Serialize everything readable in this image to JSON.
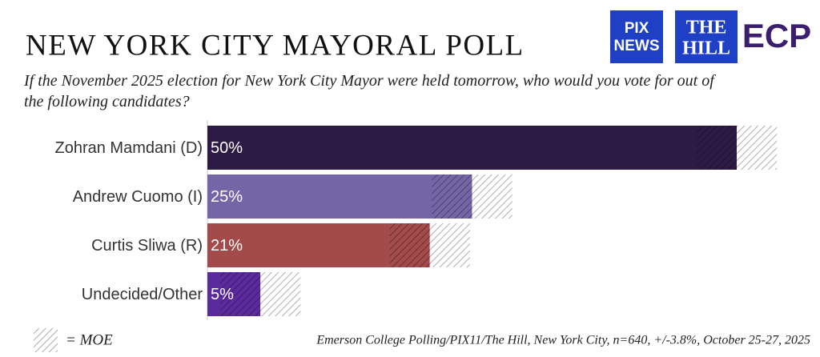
{
  "chart_data": {
    "type": "bar",
    "title": "NEW YORK CITY MAYORAL POLL",
    "subtitle": "If the November 2025 election for New York City Mayor were held tomorrow, who would you vote for out of the following candidates?",
    "categories": [
      "Zohran Mamdani (D)",
      "Andrew Cuomo (I)",
      "Curtis Sliwa (R)",
      "Undecided/Other"
    ],
    "values": [
      50,
      25,
      21,
      5
    ],
    "value_labels": [
      "50%",
      "25%",
      "21%",
      "5%"
    ],
    "errors": [
      3.8,
      3.8,
      3.8,
      3.8
    ],
    "colors": [
      "#2d1b45",
      "#7466a6",
      "#a34a4a",
      "#5b2a9e"
    ],
    "legend_label": "= MOE",
    "source": "Emerson College Polling/PIX11/The Hill, New York City, n=640, +/-3.8%, October 25-27, 2025",
    "logos": [
      "PIX",
      "NEWS",
      "THE",
      "HILL",
      "ECP"
    ]
  }
}
